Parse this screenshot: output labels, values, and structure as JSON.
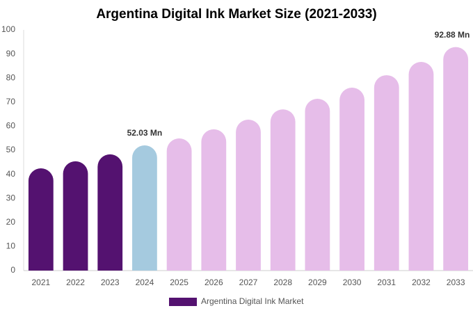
{
  "chart_data": {
    "type": "bar",
    "title": "Argentina Digital Ink Market Size (2021-2033)",
    "categories": [
      "2021",
      "2022",
      "2023",
      "2024",
      "2025",
      "2026",
      "2027",
      "2028",
      "2029",
      "2030",
      "2031",
      "2032",
      "2033"
    ],
    "series": [
      {
        "name": "Argentina Digital Ink Market",
        "color": "#541270",
        "values": [
          42.5,
          45.4,
          48.3,
          52.03,
          54.9,
          58.7,
          62.7,
          67,
          71.4,
          76,
          81.2,
          86.7,
          92.88
        ],
        "value_labels": [
          null,
          null,
          null,
          "52.03 Mn",
          null,
          null,
          null,
          null,
          null,
          null,
          null,
          null,
          "92.88 Mn"
        ],
        "colors": [
          "#541270",
          "#541270",
          "#541270",
          "#a5cadf",
          "#e6bde9",
          "#e6bde9",
          "#e6bde9",
          "#e6bde9",
          "#e6bde9",
          "#e6bde9",
          "#e6bde9",
          "#e6bde9",
          "#e6bde9"
        ]
      }
    ],
    "ylim": [
      0,
      100
    ],
    "yticks": [
      0,
      10,
      20,
      30,
      40,
      50,
      60,
      70,
      80,
      90,
      100
    ],
    "grid": false
  }
}
